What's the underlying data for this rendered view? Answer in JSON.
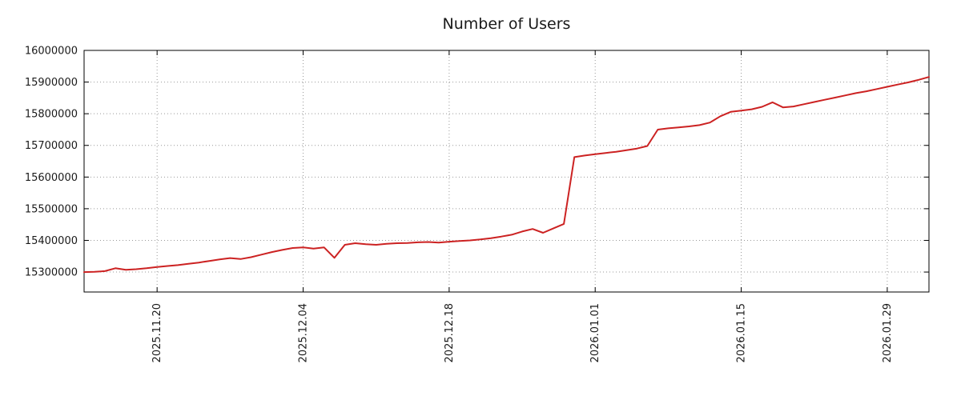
{
  "chart_data": {
    "type": "line",
    "title": "Number of Users",
    "xlabel": "",
    "ylabel": "",
    "legend": "none",
    "grid": true,
    "line_color": "#cc2222",
    "grid_color": "#999999",
    "axis_color": "#000000",
    "text_color": "#1a1a1a",
    "background": "#ffffff",
    "ylim": [
      15237000,
      16000000
    ],
    "y_ticks": [
      15300000,
      15400000,
      15500000,
      15600000,
      15700000,
      15800000,
      15900000,
      16000000
    ],
    "x_tick_labels": [
      "2025.11.20",
      "2025.12.04",
      "2025.12.18",
      "2026.01.01",
      "2026.01.15",
      "2026.01.29"
    ],
    "series_name": "Number of Users",
    "x": [
      "2025.11.13",
      "2025.11.14",
      "2025.11.15",
      "2025.11.16",
      "2025.11.17",
      "2025.11.18",
      "2025.11.19",
      "2025.11.20",
      "2025.11.21",
      "2025.11.22",
      "2025.11.23",
      "2025.11.24",
      "2025.11.25",
      "2025.11.26",
      "2025.11.27",
      "2025.11.28",
      "2025.11.29",
      "2025.11.30",
      "2025.12.01",
      "2025.12.02",
      "2025.12.03",
      "2025.12.04",
      "2025.12.05",
      "2025.12.06",
      "2025.12.07",
      "2025.12.08",
      "2025.12.09",
      "2025.12.10",
      "2025.12.11",
      "2025.12.12",
      "2025.12.13",
      "2025.12.14",
      "2025.12.15",
      "2025.12.16",
      "2025.12.17",
      "2025.12.18",
      "2025.12.19",
      "2025.12.20",
      "2025.12.21",
      "2025.12.22",
      "2025.12.23",
      "2025.12.24",
      "2025.12.25",
      "2025.12.26",
      "2025.12.27",
      "2025.12.28",
      "2025.12.29",
      "2025.12.30",
      "2025.12.31",
      "2026.01.01",
      "2026.01.02",
      "2026.01.03",
      "2026.01.04",
      "2026.01.05",
      "2026.01.06",
      "2026.01.07",
      "2026.01.08",
      "2026.01.09",
      "2026.01.10",
      "2026.01.11",
      "2026.01.12",
      "2026.01.13",
      "2026.01.14",
      "2026.01.15",
      "2026.01.16",
      "2026.01.17",
      "2026.01.18",
      "2026.01.19",
      "2026.01.20",
      "2026.01.21",
      "2026.01.22",
      "2026.01.23",
      "2026.01.24",
      "2026.01.25",
      "2026.01.26",
      "2026.01.27",
      "2026.01.28",
      "2026.01.29",
      "2026.01.30",
      "2026.01.31",
      "2026.02.01",
      "2026.02.02"
    ],
    "y": [
      15300000,
      15301000,
      15303000,
      15312000,
      15307000,
      15309000,
      15312000,
      15316000,
      15319000,
      15322000,
      15326000,
      15330000,
      15335000,
      15340000,
      15344000,
      15341000,
      15347000,
      15355000,
      15363000,
      15370000,
      15376000,
      15378000,
      15374000,
      15378000,
      15345000,
      15386000,
      15391000,
      15388000,
      15386000,
      15389000,
      15391000,
      15392000,
      15394000,
      15395000,
      15393000,
      15396000,
      15398000,
      15400000,
      15403000,
      15407000,
      15412000,
      15418000,
      15428000,
      15436000,
      15424000,
      15438000,
      15452000,
      15663000,
      15668000,
      15672000,
      15676000,
      15680000,
      15685000,
      15690000,
      15698000,
      15750000,
      15754000,
      15757000,
      15760000,
      15764000,
      15772000,
      15792000,
      15806000,
      15810000,
      15814000,
      15822000,
      15836000,
      15820000,
      15823000,
      15830000,
      15837000,
      15844000,
      15851000,
      15858000,
      15865000,
      15871000,
      15878000,
      15885000,
      15892000,
      15899000,
      15907000,
      15916000
    ]
  }
}
